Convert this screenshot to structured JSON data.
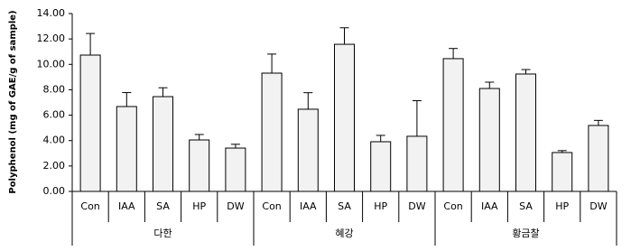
{
  "chart_data": {
    "type": "bar",
    "y_label": "Polyphenol (mg of GAE/g of sample)",
    "color": "#f2f2f2",
    "ylim": [
      0,
      14
    ],
    "yticks": [
      {
        "value": 0,
        "label": "0.00"
      },
      {
        "value": 2,
        "label": "2.00"
      },
      {
        "value": 4,
        "label": "4.00"
      },
      {
        "value": 6,
        "label": "6.00"
      },
      {
        "value": 8,
        "label": "8.00"
      },
      {
        "value": 10,
        "label": "10.00"
      },
      {
        "value": 12,
        "label": "12.00"
      },
      {
        "value": 14,
        "label": "14.00"
      }
    ],
    "groups": [
      {
        "label": "다한",
        "categories": [
          "Con",
          "IAA",
          "SA",
          "HP",
          "DW"
        ],
        "values": [
          10.73,
          6.68,
          7.46,
          4.05,
          3.41
        ],
        "errors": [
          1.7,
          1.1,
          0.7,
          0.43,
          0.3
        ]
      },
      {
        "label": "혜강",
        "categories": [
          "Con",
          "IAA",
          "SA",
          "HP",
          "DW"
        ],
        "values": [
          9.31,
          6.47,
          11.58,
          3.91,
          4.34
        ],
        "errors": [
          1.5,
          1.3,
          1.3,
          0.5,
          2.8
        ]
      },
      {
        "label": "황금찰",
        "categories": [
          "Con",
          "IAA",
          "SA",
          "HP",
          "DW"
        ],
        "values": [
          10.45,
          8.1,
          9.24,
          3.06,
          5.19
        ],
        "errors": [
          0.8,
          0.5,
          0.35,
          0.15,
          0.4
        ]
      }
    ]
  }
}
